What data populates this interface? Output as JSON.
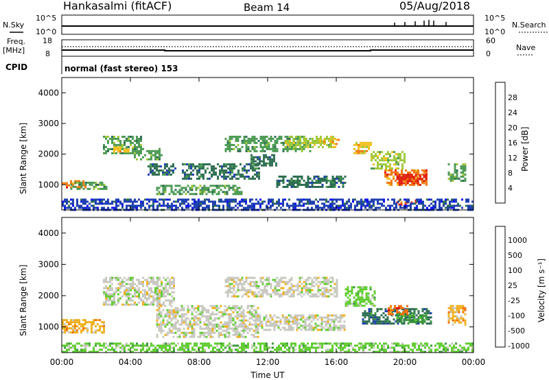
{
  "header": {
    "station": "Hankasalmi (fitACF)",
    "beam": "Beam 14",
    "date": "05/Aug/2018"
  },
  "strip": {
    "nsky_label": "N.Sky",
    "nsky_ticks": [
      "10^5",
      "10^0"
    ],
    "nsearch_label": "N.Search",
    "nsearch_ticks": [
      "10^5",
      "10^0"
    ],
    "freq_label": "Freq.",
    "freq_unit": "[MHz]",
    "freq_ticks": [
      "18",
      "8"
    ],
    "nave_label": "Nave",
    "nave_ticks": [
      "60",
      "0"
    ],
    "cpid_label": "CPID",
    "cpid_text": "normal (fast stereo) 153"
  },
  "chart_data": [
    {
      "type": "heatmap",
      "name": "power",
      "ylabel": "Slant Range [km]",
      "xlabel": "",
      "x_ticks": [
        "00:00",
        "04:00",
        "08:00",
        "12:00",
        "16:00",
        "20:00",
        "00:00"
      ],
      "y_ticks": [
        "1000",
        "2000",
        "3000",
        "4000"
      ],
      "xlim_hours": [
        0,
        24
      ],
      "ylim_km": [
        180,
        4500
      ],
      "colorbar": {
        "label": "Power [dB]",
        "ticks": [
          "4",
          "8",
          "12",
          "16",
          "20",
          "24",
          "28"
        ],
        "colors": [
          "#1010ff",
          "#2040b0",
          "#2e6e52",
          "#4c9a54",
          "#9ec83a",
          "#f0c020",
          "#f07a10",
          "#e02010"
        ]
      },
      "regions": [
        {
          "t": [
            0.0,
            1.4
          ],
          "r": [
            900,
            1150
          ],
          "level": 6
        },
        {
          "t": [
            0.5,
            2.6
          ],
          "r": [
            850,
            1100
          ],
          "level": 3
        },
        {
          "t": [
            2.4,
            4.6
          ],
          "r": [
            2000,
            2600
          ],
          "level": 3
        },
        {
          "t": [
            3.0,
            4.2
          ],
          "r": [
            2050,
            2250
          ],
          "level": 5
        },
        {
          "t": [
            4.2,
            5.8
          ],
          "r": [
            1800,
            2200
          ],
          "level": 3
        },
        {
          "t": [
            5.0,
            6.6
          ],
          "r": [
            1300,
            1700
          ],
          "level": 2
        },
        {
          "t": [
            5.5,
            10.5
          ],
          "r": [
            700,
            1000
          ],
          "level": 3
        },
        {
          "t": [
            7.0,
            11.5
          ],
          "r": [
            1200,
            1700
          ],
          "level": 2
        },
        {
          "t": [
            9.5,
            14.5
          ],
          "r": [
            2100,
            2600
          ],
          "level": 3
        },
        {
          "t": [
            11.0,
            12.5
          ],
          "r": [
            1600,
            2000
          ],
          "level": 2
        },
        {
          "t": [
            13.0,
            16.0
          ],
          "r": [
            2200,
            2600
          ],
          "level": 4
        },
        {
          "t": [
            15.0,
            16.2
          ],
          "r": [
            2300,
            2500
          ],
          "level": 5
        },
        {
          "t": [
            12.5,
            16.5
          ],
          "r": [
            900,
            1300
          ],
          "level": 2
        },
        {
          "t": [
            17.0,
            18.0
          ],
          "r": [
            2000,
            2400
          ],
          "level": 5
        },
        {
          "t": [
            18.0,
            20.0
          ],
          "r": [
            1500,
            2100
          ],
          "level": 4
        },
        {
          "t": [
            18.8,
            21.3
          ],
          "r": [
            1000,
            1500
          ],
          "level": 6
        },
        {
          "t": [
            19.5,
            21.2
          ],
          "r": [
            1050,
            1350
          ],
          "level": 7
        },
        {
          "t": [
            19.5,
            20.7
          ],
          "r": [
            320,
            520
          ],
          "level": 7
        },
        {
          "t": [
            22.5,
            23.5
          ],
          "r": [
            1100,
            1700
          ],
          "level": 3
        },
        {
          "t": [
            0.0,
            24.0
          ],
          "r": [
            200,
            550
          ],
          "level": 1
        }
      ]
    },
    {
      "type": "heatmap",
      "name": "velocity",
      "ylabel": "Slant Range [km]",
      "xlabel": "Time UT",
      "x_ticks": [
        "00:00",
        "04:00",
        "08:00",
        "12:00",
        "16:00",
        "20:00",
        "00:00"
      ],
      "y_ticks": [
        "1000",
        "2000",
        "3000",
        "4000"
      ],
      "xlim_hours": [
        0,
        24
      ],
      "ylim_km": [
        180,
        4500
      ],
      "colorbar": {
        "label": "Velocity [m s⁻¹]",
        "ticks": [
          "1000",
          "500",
          "100",
          "25",
          "-25",
          "-100",
          "-500",
          "-1000"
        ],
        "colors": [
          "#2040b0",
          "#2e6e52",
          "#3c9a3c",
          "#60cc30",
          "#c8c8c0",
          "#f0b020",
          "#f07010",
          "#e01010"
        ]
      },
      "regions": [
        {
          "t": [
            0.0,
            2.5
          ],
          "r": [
            800,
            1250
          ],
          "level": 5
        },
        {
          "t": [
            2.4,
            6.6
          ],
          "r": [
            1700,
            2600
          ],
          "level": 4
        },
        {
          "t": [
            5.5,
            11.5
          ],
          "r": [
            700,
            1700
          ],
          "level": 4
        },
        {
          "t": [
            9.5,
            16.0
          ],
          "r": [
            2000,
            2600
          ],
          "level": 4
        },
        {
          "t": [
            11.5,
            16.5
          ],
          "r": [
            900,
            1400
          ],
          "level": 4
        },
        {
          "t": [
            16.5,
            18.2
          ],
          "r": [
            1700,
            2300
          ],
          "level": 3
        },
        {
          "t": [
            17.5,
            21.5
          ],
          "r": [
            1100,
            1600
          ],
          "level": 1
        },
        {
          "t": [
            19.5,
            21.3
          ],
          "r": [
            1150,
            1450
          ],
          "level": 2
        },
        {
          "t": [
            19.0,
            20.2
          ],
          "r": [
            1400,
            1700
          ],
          "level": 6
        },
        {
          "t": [
            22.5,
            23.5
          ],
          "r": [
            1100,
            1700
          ],
          "level": 5
        },
        {
          "t": [
            0.0,
            24.0
          ],
          "r": [
            200,
            500
          ],
          "level": 3
        }
      ]
    }
  ]
}
